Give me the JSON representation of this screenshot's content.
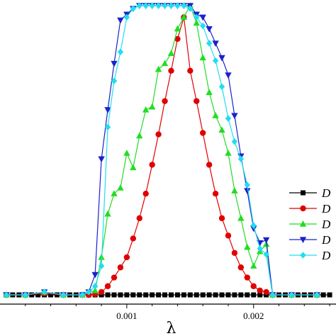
{
  "chart_data": {
    "type": "line",
    "xlabel": "λ",
    "ylabel": "",
    "xlim": [
      0.0,
      0.00265
    ],
    "ylim": [
      0.0,
      1.0
    ],
    "xticks": [
      {
        "value": 0.001,
        "label": "0.001"
      },
      {
        "value": 0.002,
        "label": "0.002"
      }
    ],
    "grid": false,
    "legend_position": "right",
    "series": [
      {
        "name": "D",
        "color": "#000000",
        "marker": "square",
        "x": [
          5e-05,
          0.0001,
          0.00015,
          0.0002,
          0.00025,
          0.0003,
          0.00035,
          0.0004,
          0.00045,
          0.0005,
          0.00055,
          0.0006,
          0.00065,
          0.0007,
          0.00075,
          0.0008,
          0.00085,
          0.0009,
          0.00095,
          0.001,
          0.00105,
          0.0011,
          0.00115,
          0.0012,
          0.00125,
          0.0013,
          0.00135,
          0.0014,
          0.00145,
          0.0015,
          0.00155,
          0.0016,
          0.00165,
          0.0017,
          0.00175,
          0.0018,
          0.00185,
          0.0019,
          0.00195,
          0.002,
          0.00205,
          0.0021,
          0.00215,
          0.0022,
          0.00225,
          0.0023,
          0.00235,
          0.0024,
          0.00245,
          0.0025,
          0.00255,
          0.0026
        ],
        "y": [
          0,
          0,
          0,
          0,
          0,
          0,
          0,
          0,
          0,
          0,
          0,
          0,
          0,
          0,
          0,
          0,
          0,
          0,
          0,
          0,
          0,
          0,
          0,
          0,
          0,
          0,
          0,
          0,
          0,
          0,
          0,
          0,
          0,
          0,
          0,
          0,
          0,
          0,
          0,
          0,
          0,
          0,
          0,
          0,
          0,
          0,
          0,
          0,
          0,
          0,
          0,
          0
        ]
      },
      {
        "name": "D",
        "color": "#e00000",
        "marker": "circle",
        "x": [
          5e-05,
          0.0002,
          0.00035,
          0.0005,
          0.00065,
          0.0007,
          0.00075,
          0.0008,
          0.00085,
          0.0009,
          0.00095,
          0.001,
          0.00105,
          0.0011,
          0.00115,
          0.0012,
          0.00125,
          0.0013,
          0.00135,
          0.0014,
          0.00145,
          0.0015,
          0.00155,
          0.0016,
          0.00165,
          0.0017,
          0.00175,
          0.0018,
          0.00185,
          0.0019,
          0.00195,
          0.002,
          0.00205,
          0.0021,
          0.00215,
          0.0023,
          0.0025
        ],
        "y": [
          0,
          0,
          0.005,
          0,
          0,
          0,
          0.003,
          0.01,
          0.03,
          0.06,
          0.095,
          0.13,
          0.195,
          0.265,
          0.35,
          0.45,
          0.555,
          0.67,
          0.775,
          0.885,
          0.96,
          0.775,
          0.67,
          0.56,
          0.45,
          0.35,
          0.265,
          0.205,
          0.145,
          0.095,
          0.06,
          0.03,
          0.015,
          0.01,
          0,
          0,
          0
        ]
      },
      {
        "name": "D",
        "color": "#22dd22",
        "marker": "triangle-up",
        "x": [
          5e-05,
          0.0002,
          0.00035,
          0.0005,
          0.00065,
          0.00075,
          0.0008,
          0.00085,
          0.0009,
          0.00095,
          0.001,
          0.00105,
          0.0011,
          0.00115,
          0.0012,
          0.00125,
          0.0013,
          0.00135,
          0.0014,
          0.00145,
          0.0015,
          0.00155,
          0.0016,
          0.00165,
          0.0017,
          0.00175,
          0.0018,
          0.00185,
          0.0019,
          0.00195,
          0.002,
          0.00205,
          0.0021,
          0.00215,
          0.0023,
          0.0025
        ],
        "y": [
          0,
          0,
          0.01,
          0,
          0,
          0.015,
          0.13,
          0.28,
          0.35,
          0.37,
          0.49,
          0.44,
          0.55,
          0.64,
          0.65,
          0.78,
          0.8,
          0.835,
          0.92,
          0.96,
          1.0,
          0.94,
          0.82,
          0.7,
          0.62,
          0.57,
          0.49,
          0.36,
          0.265,
          0.165,
          0.1,
          0.15,
          0.175,
          0.0,
          0.0,
          0.0
        ]
      },
      {
        "name": "D",
        "color": "#1a22cc",
        "marker": "triangle-down",
        "x": [
          5e-05,
          0.0002,
          0.00035,
          0.0005,
          0.00065,
          0.0007,
          0.00075,
          0.0008,
          0.00085,
          0.0009,
          0.00095,
          0.001,
          0.00105,
          0.0011,
          0.00115,
          0.0012,
          0.00125,
          0.0013,
          0.00135,
          0.0014,
          0.00145,
          0.0015,
          0.00155,
          0.0016,
          0.00165,
          0.0017,
          0.00175,
          0.0018,
          0.00185,
          0.0019,
          0.00195,
          0.002,
          0.00205,
          0.0021,
          0.00215,
          0.0023,
          0.0025
        ],
        "y": [
          0,
          0,
          0.01,
          0,
          0,
          0.01,
          0.07,
          0.47,
          0.64,
          0.8,
          0.95,
          0.97,
          0.99,
          1.0,
          1.0,
          1.0,
          1.0,
          1.0,
          1.0,
          1.0,
          1.0,
          1.0,
          0.97,
          0.96,
          0.92,
          0.87,
          0.82,
          0.76,
          0.62,
          0.48,
          0.36,
          0.23,
          0.18,
          0.19,
          0.0,
          0.0,
          0.0
        ]
      },
      {
        "name": "D",
        "color": "#22ddee",
        "marker": "diamond",
        "x": [
          5e-05,
          0.0002,
          0.00035,
          0.0005,
          0.00065,
          0.0007,
          0.00075,
          0.0008,
          0.00085,
          0.0009,
          0.00095,
          0.001,
          0.00105,
          0.0011,
          0.00115,
          0.0012,
          0.00125,
          0.0013,
          0.00135,
          0.0014,
          0.00145,
          0.0015,
          0.00155,
          0.0016,
          0.00165,
          0.0017,
          0.00175,
          0.0018,
          0.00185,
          0.0019,
          0.00195,
          0.002,
          0.00205,
          0.0021,
          0.00215,
          0.0023,
          0.0025
        ],
        "y": [
          0,
          0,
          0.01,
          0,
          0,
          0.01,
          0.03,
          0.1,
          0.58,
          0.74,
          0.84,
          0.96,
          0.99,
          1.0,
          1.0,
          1.0,
          1.0,
          1.0,
          1.0,
          1.0,
          1.0,
          0.99,
          0.96,
          0.93,
          0.87,
          0.81,
          0.72,
          0.61,
          0.53,
          0.47,
          0.38,
          0.24,
          0.16,
          0.14,
          0.0,
          0.0,
          0.0
        ]
      }
    ]
  }
}
